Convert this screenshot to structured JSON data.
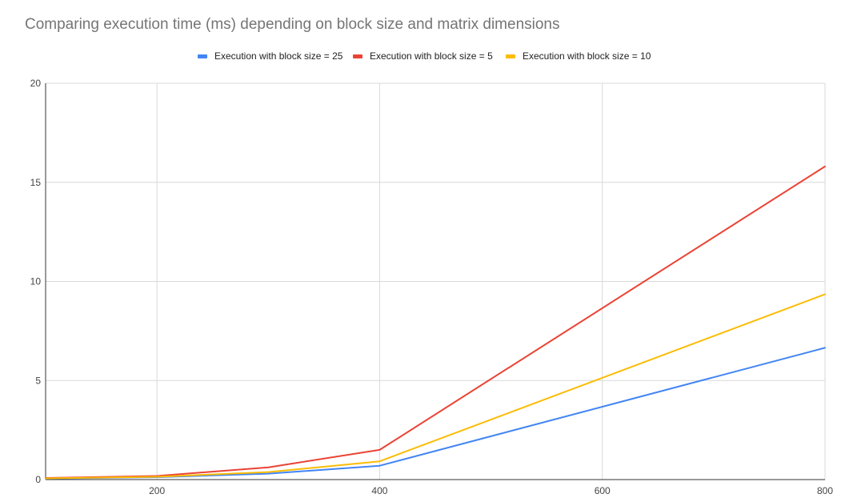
{
  "chart_data": {
    "type": "line",
    "title": "Comparing execution time (ms) depending on block size and matrix dimensions",
    "xlabel": "",
    "ylabel": "",
    "xlim": [
      100,
      800
    ],
    "ylim": [
      0,
      20
    ],
    "x_ticks": [
      200,
      400,
      600,
      800
    ],
    "y_ticks": [
      0,
      5,
      10,
      15,
      20
    ],
    "grid": true,
    "legend_position": "top-center",
    "x": [
      100,
      200,
      300,
      400,
      800
    ],
    "series": [
      {
        "name": "Execution with block size = 25",
        "color": "#4285f4",
        "values": [
          0.05,
          0.12,
          0.3,
          0.7,
          6.65
        ]
      },
      {
        "name": "Execution with block size  = 5",
        "color": "#ea4335",
        "values": [
          0.08,
          0.18,
          0.62,
          1.5,
          15.8
        ]
      },
      {
        "name": "Execution with block size  = 10",
        "color": "#fbbc04",
        "values": [
          0.06,
          0.14,
          0.38,
          0.92,
          9.35
        ]
      }
    ]
  }
}
